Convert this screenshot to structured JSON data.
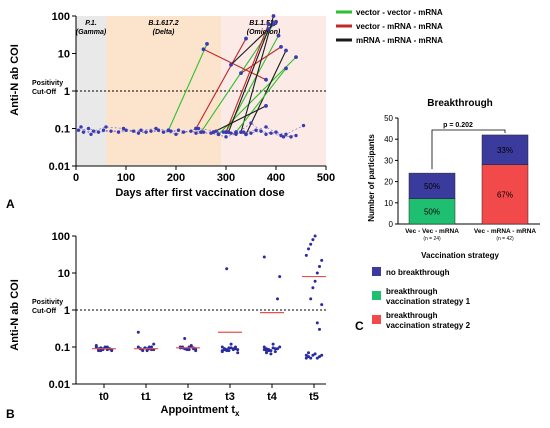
{
  "chart_data": [
    {
      "type": "line",
      "panel": "A",
      "xlabel": "Days after first vaccination dose",
      "ylabel": "Anti-N ab COI",
      "xlim": [
        0,
        500
      ],
      "ylim": [
        0.01,
        100
      ],
      "yscale": "log",
      "x_ticks": [
        0,
        100,
        200,
        300,
        400,
        500
      ],
      "y_ticks": [
        {
          "v": 0.01,
          "label": "0.01"
        },
        {
          "v": 0.1,
          "label": "0.1"
        },
        {
          "v": 1,
          "label": "1"
        },
        {
          "v": 10,
          "label": "10"
        },
        {
          "v": 100,
          "label": "100"
        }
      ],
      "cutoff": 1,
      "cutoff_label": [
        "Positivity",
        "Cut-Off"
      ],
      "periods": [
        {
          "label": [
            "P.1.",
            "(Gamma)"
          ],
          "start": 0,
          "end": 60,
          "color": "#e9e9e9"
        },
        {
          "label": [
            "B.1.617.2",
            "(Delta)"
          ],
          "start": 60,
          "end": 290,
          "color": "#fbe3cc"
        },
        {
          "label": [
            "B1.1.529",
            "(Omicron)"
          ],
          "start": 290,
          "end": 500,
          "color": "#fbeae6"
        }
      ],
      "legend": [
        {
          "name": "vector - vector - mRNA",
          "color": "#2fbf2f"
        },
        {
          "name": "vector - mRNA - mRNA",
          "color": "#c0282a"
        },
        {
          "name": "mRNA - mRNA - mRNA",
          "color": "#1a1a1a"
        }
      ],
      "series": [
        {
          "group": "vector - vector - mRNA",
          "color": "#2fbf2f",
          "points": [
            [
              185,
              0.09
            ],
            [
              262,
              18
            ]
          ]
        },
        {
          "group": "vector - vector - mRNA",
          "color": "#2fbf2f",
          "points": [
            [
              250,
              0.08
            ],
            [
              395,
              60
            ]
          ]
        },
        {
          "group": "vector - vector - mRNA",
          "color": "#2fbf2f",
          "points": [
            [
              300,
              0.08
            ],
            [
              405,
              30
            ]
          ]
        },
        {
          "group": "vector - vector - mRNA",
          "color": "#2fbf2f",
          "points": [
            [
              285,
              0.07
            ],
            [
              440,
              8
            ]
          ]
        },
        {
          "group": "vector - mRNA - mRNA",
          "color": "#c0282a",
          "points": [
            [
              240,
              0.1
            ],
            [
              340,
              25
            ]
          ]
        },
        {
          "group": "vector - mRNA - mRNA",
          "color": "#c0282a",
          "points": [
            [
              255,
              13
            ],
            [
              380,
              2
            ]
          ]
        },
        {
          "group": "vector - mRNA - mRNA",
          "color": "#c0282a",
          "points": [
            [
              300,
              0.08
            ],
            [
              385,
              60
            ]
          ]
        },
        {
          "group": "vector - mRNA - mRNA",
          "color": "#c0282a",
          "points": [
            [
              330,
              3
            ],
            [
              410,
              15
            ]
          ]
        },
        {
          "group": "mRNA - mRNA - mRNA",
          "color": "#1a1a1a",
          "points": [
            [
              330,
              0.08
            ],
            [
              395,
              100
            ]
          ]
        },
        {
          "group": "mRNA - mRNA - mRNA",
          "color": "#1a1a1a",
          "points": [
            [
              305,
              0.08
            ],
            [
              385,
              45
            ]
          ]
        },
        {
          "group": "mRNA - mRNA - mRNA",
          "color": "#1a1a1a",
          "points": [
            [
              340,
              0.07
            ],
            [
              420,
              12
            ]
          ]
        },
        {
          "group": "mRNA - mRNA - mRNA",
          "color": "#1a1a1a",
          "points": [
            [
              310,
              5
            ],
            [
              400,
              70
            ]
          ]
        },
        {
          "group": "vector - vector - mRNA",
          "color": "#2fbf2f",
          "points": [
            [
              320,
              0.08
            ],
            [
              420,
              4
            ]
          ]
        },
        {
          "group": "mRNA - mRNA - mRNA",
          "color": "#1a1a1a",
          "points": [
            [
              275,
              0.08
            ],
            [
              380,
              0.4
            ]
          ]
        }
      ],
      "no_breakthrough_points": [
        [
          5,
          0.09
        ],
        [
          15,
          0.08
        ],
        [
          25,
          0.1
        ],
        [
          35,
          0.085
        ],
        [
          45,
          0.08
        ],
        [
          55,
          0.09
        ],
        [
          70,
          0.085
        ],
        [
          85,
          0.08
        ],
        [
          100,
          0.09
        ],
        [
          115,
          0.085
        ],
        [
          130,
          0.09
        ],
        [
          140,
          0.08
        ],
        [
          150,
          0.085
        ],
        [
          165,
          0.09
        ],
        [
          175,
          0.08
        ],
        [
          190,
          0.085
        ],
        [
          200,
          0.07
        ],
        [
          215,
          0.08
        ],
        [
          230,
          0.085
        ],
        [
          240,
          0.075
        ],
        [
          255,
          0.08
        ],
        [
          270,
          0.075
        ],
        [
          280,
          0.085
        ],
        [
          295,
          0.08
        ],
        [
          310,
          0.075
        ],
        [
          320,
          0.07
        ],
        [
          335,
          0.08
        ],
        [
          350,
          0.075
        ],
        [
          360,
          0.09
        ],
        [
          370,
          0.085
        ],
        [
          380,
          0.07
        ],
        [
          390,
          0.075
        ],
        [
          400,
          0.08
        ],
        [
          410,
          0.065
        ],
        [
          420,
          0.07
        ],
        [
          430,
          0.06
        ],
        [
          440,
          0.065
        ],
        [
          455,
          0.12
        ],
        [
          350,
          0.14
        ],
        [
          380,
          0.11
        ],
        [
          10,
          0.11
        ],
        [
          30,
          0.07
        ],
        [
          60,
          0.11
        ],
        [
          95,
          0.1
        ],
        [
          125,
          0.075
        ],
        [
          160,
          0.1
        ],
        [
          205,
          0.09
        ],
        [
          245,
          0.1
        ],
        [
          300,
          0.06
        ],
        [
          415,
          0.06
        ]
      ]
    },
    {
      "type": "bar",
      "panel": "C",
      "title": "Breakthrough",
      "ylabel": "Number of participants",
      "xlabel": "Vaccination strategy",
      "ylim": [
        0,
        50
      ],
      "y_ticks": [
        0,
        10,
        20,
        30,
        40,
        50
      ],
      "categories": [
        {
          "label": "Vec - Vec - mRNA",
          "n": "(n = 24)"
        },
        {
          "label": "Vec - mRNA - mRNA",
          "n": "(n = 42)"
        }
      ],
      "series": [
        {
          "name": "breakthrough vaccination strategy 1",
          "color": "#1fbf72",
          "values": [
            12,
            0
          ],
          "labels": [
            "50%",
            ""
          ]
        },
        {
          "name": "breakthrough vaccination strategy 2",
          "color": "#f24a4a",
          "values": [
            0,
            28
          ],
          "labels": [
            "",
            "67%"
          ]
        },
        {
          "name": "no breakthrough",
          "color": "#3b3b9e",
          "values": [
            12,
            14
          ],
          "labels": [
            "50%",
            "33%"
          ]
        }
      ],
      "annotation": "p = 0.202",
      "legend": [
        {
          "name": "no breakthrough",
          "color": "#3b3b9e"
        },
        {
          "name": "breakthrough vaccination strategy 1",
          "color": "#1fbf72"
        },
        {
          "name": "breakthrough vaccination strategy 2",
          "color": "#f24a4a"
        }
      ]
    },
    {
      "type": "scatter",
      "panel": "B",
      "ylabel": "Anti-N ab COI",
      "xlabel": "Appointment t",
      "xlabel_sub": "x",
      "categories": [
        "t0",
        "t1",
        "t2",
        "t3",
        "t4",
        "t5"
      ],
      "ylim": [
        0.01,
        100
      ],
      "yscale": "log",
      "y_ticks": [
        {
          "v": 0.01,
          "label": "0.01"
        },
        {
          "v": 0.1,
          "label": "0.1"
        },
        {
          "v": 1,
          "label": "1"
        },
        {
          "v": 10,
          "label": "10"
        },
        {
          "v": 100,
          "label": "100"
        }
      ],
      "cutoff": 1,
      "cutoff_label": [
        "Positivity",
        "Cut-Off"
      ],
      "means": [
        0.09,
        0.09,
        0.095,
        0.25,
        0.85,
        8
      ],
      "points": [
        [
          0.1,
          0.09,
          0.08,
          0.085,
          0.095,
          0.1,
          0.09,
          0.085,
          0.11,
          0.08,
          0.095,
          0.09,
          0.1,
          0.085,
          0.09,
          0.08
        ],
        [
          0.1,
          0.09,
          0.085,
          0.095,
          0.08,
          0.09,
          0.1,
          0.085,
          0.25,
          0.09,
          0.08,
          0.095,
          0.09,
          0.1,
          0.085,
          0.12
        ],
        [
          0.1,
          0.095,
          0.09,
          0.085,
          0.1,
          0.11,
          0.09,
          0.08,
          0.095,
          0.1,
          0.17,
          0.09,
          0.085,
          0.1,
          0.095,
          0.09
        ],
        [
          0.1,
          0.09,
          0.085,
          0.08,
          0.095,
          0.09,
          0.1,
          0.085,
          0.075,
          0.09,
          0.08,
          0.095,
          0.12,
          0.085,
          0.09,
          0.07,
          0.08,
          0.085,
          13
        ],
        [
          0.1,
          0.09,
          0.085,
          0.08,
          0.095,
          0.075,
          0.09,
          0.1,
          0.085,
          0.07,
          0.08,
          0.065,
          0.12,
          0.09,
          2,
          8,
          27,
          0.08,
          0.085
        ],
        [
          0.06,
          0.055,
          0.05,
          0.06,
          0.065,
          0.05,
          0.055,
          0.06,
          0.05,
          0.07,
          2,
          4,
          6,
          10,
          15,
          22,
          30,
          45,
          60,
          80,
          100,
          0.45,
          0.3,
          1.4
        ]
      ]
    }
  ],
  "panel_labels": {
    "a": "A",
    "b": "B",
    "c": "C"
  }
}
